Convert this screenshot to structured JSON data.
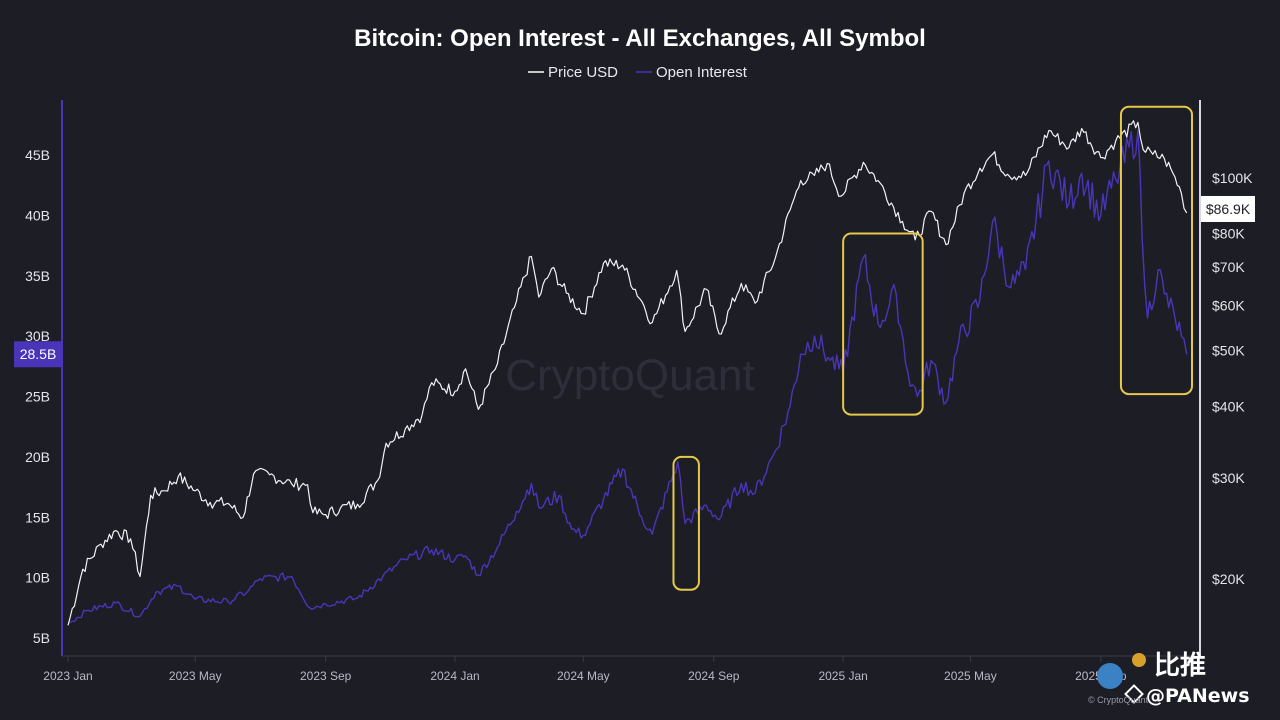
{
  "chart_data": {
    "type": "line",
    "title": "Bitcoin: Open Interest - All Exchanges, All Symbol",
    "legend": [
      {
        "name": "Price USD",
        "color": "#ffffff"
      },
      {
        "name": "Open Interest",
        "color": "#4a35b8"
      }
    ],
    "left_axis": {
      "label": "Open Interest",
      "ticks": [
        {
          "value": 5,
          "label": "5B"
        },
        {
          "value": 10,
          "label": "10B"
        },
        {
          "value": 15,
          "label": "15B"
        },
        {
          "value": 20,
          "label": "20B"
        },
        {
          "value": 25,
          "label": "25B"
        },
        {
          "value": 30,
          "label": "30B"
        },
        {
          "value": 35,
          "label": "35B"
        },
        {
          "value": 40,
          "label": "40B"
        },
        {
          "value": 45,
          "label": "45B"
        }
      ],
      "range": [
        4,
        50
      ],
      "current_value_label": "28.5B",
      "current_value": 28.5
    },
    "right_axis": {
      "label": "Price USD",
      "scale": "log",
      "ticks": [
        {
          "value": 20000,
          "label": "$20K"
        },
        {
          "value": 30000,
          "label": "$30K"
        },
        {
          "value": 40000,
          "label": "$40K"
        },
        {
          "value": 50000,
          "label": "$50K"
        },
        {
          "value": 60000,
          "label": "$60K"
        },
        {
          "value": 70000,
          "label": "$70K"
        },
        {
          "value": 80000,
          "label": "$80K"
        },
        {
          "value": 100000,
          "label": "$100K"
        }
      ],
      "range": [
        15000,
        140000
      ],
      "current_value_label": "$86.9K",
      "current_value": 86900
    },
    "x_axis": {
      "range": [
        "2023-01-01",
        "2025-10-31"
      ],
      "ticks": [
        {
          "date": "2023-01-01",
          "label": "2023 Jan"
        },
        {
          "date": "2023-05-01",
          "label": "2023 May"
        },
        {
          "date": "2023-09-01",
          "label": "2023 Sep"
        },
        {
          "date": "2024-01-01",
          "label": "2024 Jan"
        },
        {
          "date": "2024-05-01",
          "label": "2024 May"
        },
        {
          "date": "2024-09-01",
          "label": "2024 Sep"
        },
        {
          "date": "2025-01-01",
          "label": "2025 Jan"
        },
        {
          "date": "2025-05-01",
          "label": "2025 May"
        },
        {
          "date": "2025-09-01",
          "label": "2025 Sep"
        }
      ]
    },
    "series": [
      {
        "name": "Price USD",
        "axis": "right",
        "points": [
          [
            "2023-01-01",
            16600
          ],
          [
            "2023-01-15",
            20800
          ],
          [
            "2023-02-01",
            23000
          ],
          [
            "2023-02-15",
            24300
          ],
          [
            "2023-03-01",
            23500
          ],
          [
            "2023-03-10",
            20200
          ],
          [
            "2023-03-20",
            28000
          ],
          [
            "2023-04-01",
            28500
          ],
          [
            "2023-04-15",
            30200
          ],
          [
            "2023-05-01",
            28500
          ],
          [
            "2023-05-15",
            27200
          ],
          [
            "2023-06-01",
            27100
          ],
          [
            "2023-06-15",
            25600
          ],
          [
            "2023-06-25",
            30500
          ],
          [
            "2023-07-10",
            30400
          ],
          [
            "2023-07-31",
            29300
          ],
          [
            "2023-08-15",
            29200
          ],
          [
            "2023-08-20",
            26100
          ],
          [
            "2023-09-01",
            25900
          ],
          [
            "2023-09-15",
            26600
          ],
          [
            "2023-10-01",
            27000
          ],
          [
            "2023-10-20",
            29700
          ],
          [
            "2023-10-28",
            34500
          ],
          [
            "2023-11-15",
            36500
          ],
          [
            "2023-12-01",
            38700
          ],
          [
            "2023-12-10",
            44000
          ],
          [
            "2024-01-01",
            42500
          ],
          [
            "2024-01-11",
            46500
          ],
          [
            "2024-01-23",
            39500
          ],
          [
            "2024-02-10",
            47500
          ],
          [
            "2024-02-28",
            61000
          ],
          [
            "2024-03-13",
            73000
          ],
          [
            "2024-03-20",
            62000
          ],
          [
            "2024-04-01",
            69500
          ],
          [
            "2024-04-15",
            63000
          ],
          [
            "2024-05-01",
            58000
          ],
          [
            "2024-05-20",
            71000
          ],
          [
            "2024-06-07",
            70500
          ],
          [
            "2024-06-25",
            61000
          ],
          [
            "2024-07-05",
            56000
          ],
          [
            "2024-07-28",
            69000
          ],
          [
            "2024-08-05",
            54000
          ],
          [
            "2024-08-25",
            64000
          ],
          [
            "2024-09-06",
            53500
          ],
          [
            "2024-09-27",
            65500
          ],
          [
            "2024-10-10",
            60500
          ],
          [
            "2024-10-29",
            72500
          ],
          [
            "2024-11-12",
            88000
          ],
          [
            "2024-11-22",
            99000
          ],
          [
            "2024-12-05",
            101000
          ],
          [
            "2024-12-17",
            106000
          ],
          [
            "2024-12-30",
            93000
          ],
          [
            "2025-01-20",
            106500
          ],
          [
            "2025-02-03",
            99000
          ],
          [
            "2025-02-26",
            84000
          ],
          [
            "2025-03-10",
            78000
          ],
          [
            "2025-03-25",
            87500
          ],
          [
            "2025-04-08",
            76500
          ],
          [
            "2025-04-25",
            94000
          ],
          [
            "2025-05-10",
            104000
          ],
          [
            "2025-05-22",
            110000
          ],
          [
            "2025-06-05",
            101500
          ],
          [
            "2025-06-22",
            101000
          ],
          [
            "2025-07-14",
            121000
          ],
          [
            "2025-08-02",
            113000
          ],
          [
            "2025-08-14",
            122000
          ],
          [
            "2025-09-01",
            108500
          ],
          [
            "2025-09-15",
            116000
          ],
          [
            "2025-10-06",
            125000
          ],
          [
            "2025-10-11",
            112000
          ],
          [
            "2025-10-20",
            110000
          ],
          [
            "2025-10-31",
            108000
          ],
          [
            "2025-11-08",
            102000
          ],
          [
            "2025-11-16",
            94000
          ],
          [
            "2025-11-21",
            86900
          ]
        ]
      },
      {
        "name": "Open Interest",
        "axis": "left",
        "points": [
          [
            "2023-01-01",
            6.2
          ],
          [
            "2023-01-20",
            7.3
          ],
          [
            "2023-02-15",
            7.9
          ],
          [
            "2023-03-10",
            6.8
          ],
          [
            "2023-03-25",
            8.8
          ],
          [
            "2023-04-15",
            9.3
          ],
          [
            "2023-05-01",
            8.2
          ],
          [
            "2023-06-01",
            8.0
          ],
          [
            "2023-06-20",
            8.9
          ],
          [
            "2023-07-01",
            9.9
          ],
          [
            "2023-07-31",
            10.1
          ],
          [
            "2023-08-17",
            7.5
          ],
          [
            "2023-09-01",
            7.8
          ],
          [
            "2023-10-01",
            8.3
          ],
          [
            "2023-10-25",
            10.1
          ],
          [
            "2023-11-15",
            11.5
          ],
          [
            "2023-12-10",
            12.3
          ],
          [
            "2024-01-01",
            11.5
          ],
          [
            "2024-01-11",
            11.8
          ],
          [
            "2024-01-23",
            10.2
          ],
          [
            "2024-02-10",
            12.5
          ],
          [
            "2024-02-28",
            15.5
          ],
          [
            "2024-03-13",
            17.8
          ],
          [
            "2024-03-20",
            15.8
          ],
          [
            "2024-04-08",
            16.8
          ],
          [
            "2024-04-20",
            14.0
          ],
          [
            "2024-05-01",
            13.5
          ],
          [
            "2024-05-20",
            16.5
          ],
          [
            "2024-06-07",
            19.0
          ],
          [
            "2024-06-25",
            15.0
          ],
          [
            "2024-07-05",
            13.6
          ],
          [
            "2024-07-29",
            19.6
          ],
          [
            "2024-08-05",
            14.5
          ],
          [
            "2024-08-25",
            16.0
          ],
          [
            "2024-09-06",
            14.8
          ],
          [
            "2024-09-27",
            17.8
          ],
          [
            "2024-10-10",
            17.0
          ],
          [
            "2024-10-29",
            20.5
          ],
          [
            "2024-11-12",
            24.2
          ],
          [
            "2024-11-22",
            28.5
          ],
          [
            "2024-12-05",
            30.0
          ],
          [
            "2024-12-20",
            28.0
          ],
          [
            "2025-01-01",
            27.0
          ],
          [
            "2025-01-20",
            36.5
          ],
          [
            "2025-02-03",
            31.0
          ],
          [
            "2025-02-20",
            33.5
          ],
          [
            "2025-03-03",
            27.0
          ],
          [
            "2025-03-12",
            25.0
          ],
          [
            "2025-03-25",
            28.0
          ],
          [
            "2025-04-08",
            24.5
          ],
          [
            "2025-04-20",
            29.5
          ],
          [
            "2025-05-10",
            33.0
          ],
          [
            "2025-05-22",
            39.5
          ],
          [
            "2025-06-08",
            34.0
          ],
          [
            "2025-06-22",
            35.5
          ],
          [
            "2025-07-14",
            44.5
          ],
          [
            "2025-08-02",
            41.0
          ],
          [
            "2025-08-14",
            43.5
          ],
          [
            "2025-09-01",
            40.0
          ],
          [
            "2025-09-15",
            43.0
          ],
          [
            "2025-10-06",
            47.0
          ],
          [
            "2025-10-10",
            38.0
          ],
          [
            "2025-10-15",
            31.5
          ],
          [
            "2025-10-25",
            35.5
          ],
          [
            "2025-10-31",
            33.5
          ],
          [
            "2025-11-10",
            31.5
          ],
          [
            "2025-11-16",
            30.0
          ],
          [
            "2025-11-21",
            28.5
          ]
        ]
      }
    ],
    "annotations": [
      {
        "type": "highlight-box",
        "color": "#e6c84a",
        "x_range": [
          "2024-07-25",
          "2024-08-18"
        ],
        "y_range_oi": [
          9.0,
          20.0
        ]
      },
      {
        "type": "highlight-box",
        "color": "#e6c84a",
        "x_range": [
          "2025-01-01",
          "2025-03-17"
        ],
        "y_range_oi": [
          23.5,
          38.5
        ]
      },
      {
        "type": "highlight-box",
        "color": "#e6c84a",
        "x_range": [
          "2025-09-20",
          "2025-11-26"
        ],
        "y_range_oi": [
          25.2,
          49.0
        ]
      }
    ],
    "watermark": "CryptoQuant",
    "footer_credit": "© CryptoQuant",
    "overlay_logo_text": "比推",
    "overlay_logo_text_2": "@PANews"
  }
}
